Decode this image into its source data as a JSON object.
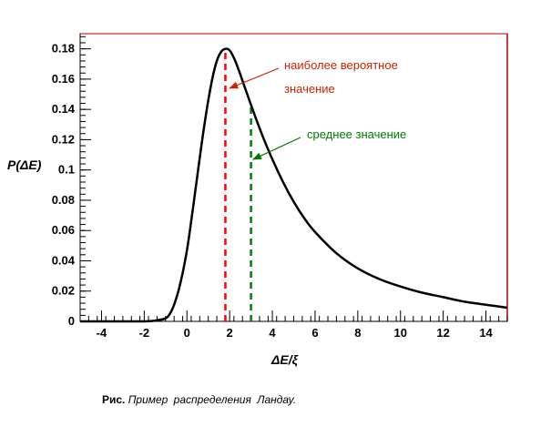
{
  "chart_data": {
    "type": "line",
    "title": "",
    "xlabel": "ΔE/ξ",
    "ylabel": "P(ΔE)",
    "xlim": [
      -5,
      15
    ],
    "ylim": [
      0,
      0.19
    ],
    "x_ticks": [
      -4,
      -2,
      0,
      2,
      4,
      6,
      8,
      10,
      12,
      14
    ],
    "y_ticks": [
      0,
      0.02,
      0.04,
      0.06,
      0.08,
      0.1,
      0.12,
      0.14,
      0.16,
      0.18
    ],
    "y_tick_labels": [
      "0",
      "0.02",
      "0.04",
      "0.06",
      "0.08",
      "0.1",
      "0.12",
      "0.14",
      "0.16",
      "0.18"
    ],
    "grid": false,
    "series": [
      {
        "color": "#000000",
        "x": [
          -5,
          -4,
          -3,
          -2,
          -1.5,
          -1,
          -0.8,
          -0.6,
          -0.4,
          -0.2,
          0,
          0.2,
          0.4,
          0.6,
          0.8,
          1.0,
          1.2,
          1.4,
          1.6,
          1.8,
          2.0,
          2.2,
          2.4,
          2.6,
          2.8,
          3.0,
          3.5,
          4.0,
          4.5,
          5.0,
          5.5,
          6.0,
          7.0,
          8.0,
          9.0,
          10.0,
          11.0,
          12.0,
          13.0,
          14.0,
          15.0
        ],
        "y": [
          0,
          0,
          0,
          0,
          0.0005,
          0.002,
          0.005,
          0.011,
          0.02,
          0.032,
          0.047,
          0.066,
          0.087,
          0.108,
          0.128,
          0.146,
          0.161,
          0.172,
          0.178,
          0.18,
          0.179,
          0.174,
          0.167,
          0.159,
          0.151,
          0.143,
          0.124,
          0.107,
          0.092,
          0.079,
          0.068,
          0.059,
          0.045,
          0.035,
          0.028,
          0.023,
          0.019,
          0.016,
          0.013,
          0.011,
          0.009
        ]
      }
    ],
    "markers": [
      {
        "x": 1.8,
        "y": 0.18,
        "color": "#ff0000",
        "style": "dashed"
      },
      {
        "x": 3.0,
        "y": 0.143,
        "color": "#008000",
        "style": "dashed"
      }
    ],
    "annotations": [
      {
        "lines": [
          "наиболее  вероятное",
          "значение"
        ],
        "color": "#cc2200",
        "arrow_to": [
          2.0,
          0.154
        ]
      },
      {
        "lines": [
          "среднее  значение"
        ],
        "color": "#007a00",
        "arrow_to": [
          3.1,
          0.107
        ]
      }
    ]
  },
  "caption": {
    "prefix": "Рис.",
    "text": "Пример  распределения   Ландау."
  }
}
